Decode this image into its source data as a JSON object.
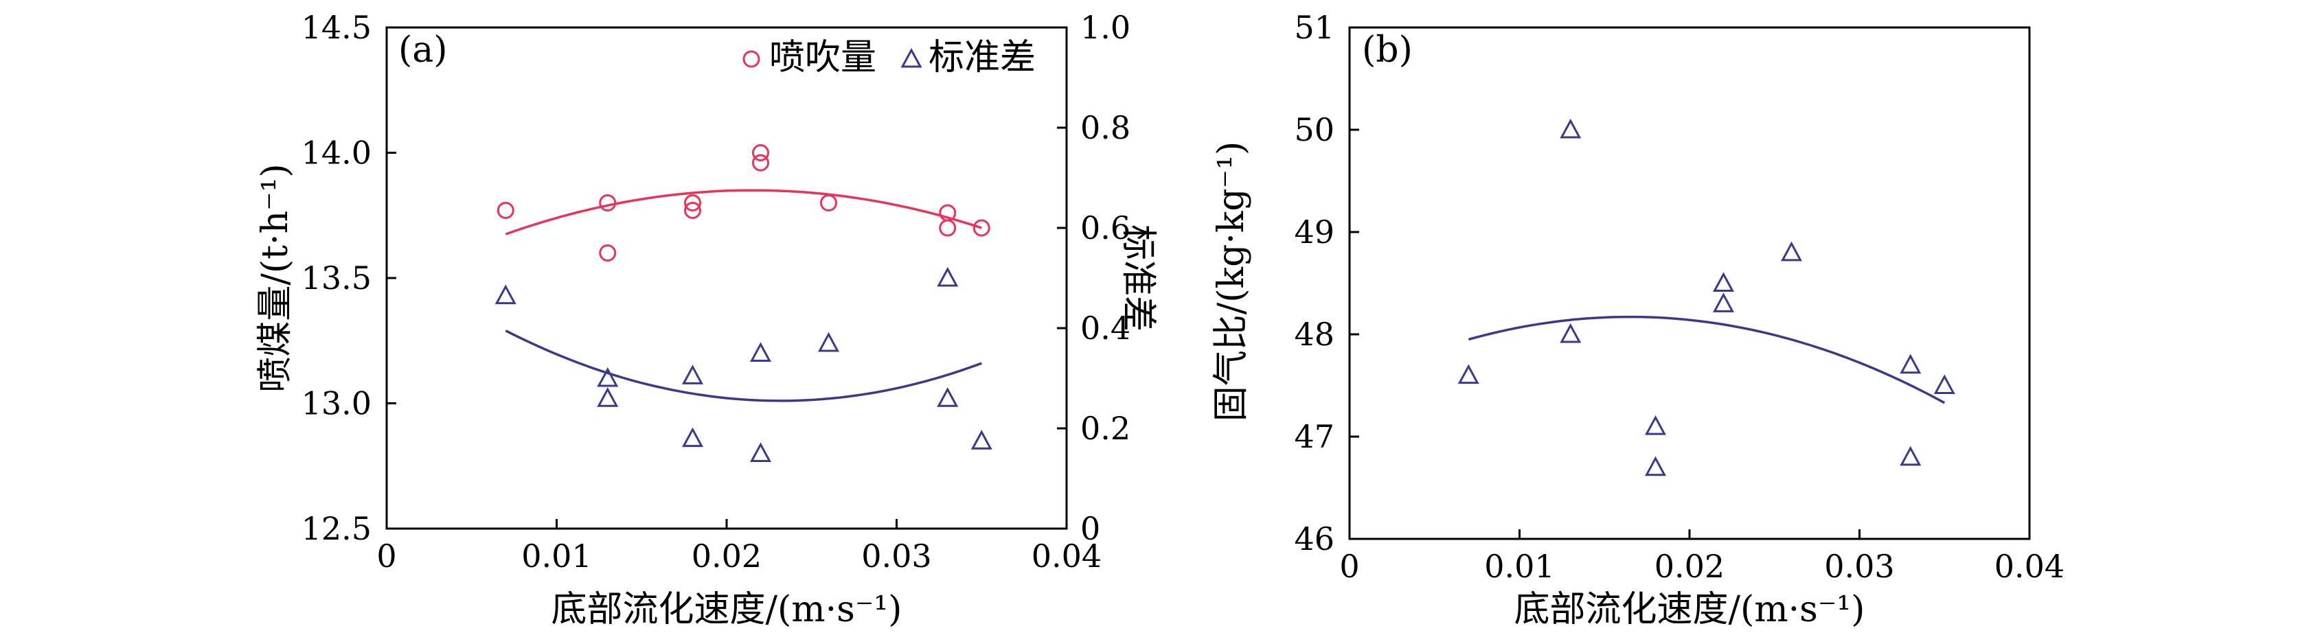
{
  "chart_data": [
    {
      "type": "scatter",
      "panel_label": "(a)",
      "xlabel": "底部流化速度/(m·s⁻¹)",
      "ylabel": "喷煤量/(t·h⁻¹)",
      "y2label": "标准差",
      "xlim": [
        0,
        0.04
      ],
      "ylim": [
        12.5,
        14.5
      ],
      "y2lim": [
        0,
        1.0
      ],
      "x_ticks": [
        "0",
        "0.01",
        "0.02",
        "0.03",
        "0.04"
      ],
      "y_ticks": [
        "12.5",
        "13.0",
        "13.5",
        "14.0",
        "14.5"
      ],
      "y2_ticks": [
        "0",
        "0.2",
        "0.4",
        "0.6",
        "0.8",
        "1.0"
      ],
      "legend_position": "top-right",
      "grid": false,
      "series": [
        {
          "name": "喷吹量",
          "axis": "left",
          "marker": "circle",
          "color": "#e8335a",
          "points": [
            [
              0.007,
              13.77
            ],
            [
              0.013,
              13.8
            ],
            [
              0.013,
              13.6
            ],
            [
              0.018,
              13.8
            ],
            [
              0.018,
              13.77
            ],
            [
              0.022,
              14.0
            ],
            [
              0.022,
              13.96
            ],
            [
              0.026,
              13.8
            ],
            [
              0.033,
              13.76
            ],
            [
              0.033,
              13.7
            ],
            [
              0.035,
              13.7
            ]
          ],
          "fit": {
            "x_range": [
              0.007,
              0.035
            ],
            "points": [
              [
                0.007,
                13.675
              ],
              [
                0.022,
                13.85
              ],
              [
                0.035,
                13.7
              ]
            ]
          }
        },
        {
          "name": "标准差",
          "axis": "right",
          "marker": "triangle",
          "color": "#3a3a8c",
          "points": [
            [
              0.007,
              0.465
            ],
            [
              0.013,
              0.3
            ],
            [
              0.013,
              0.26
            ],
            [
              0.018,
              0.305
            ],
            [
              0.018,
              0.18
            ],
            [
              0.022,
              0.35
            ],
            [
              0.022,
              0.15
            ],
            [
              0.026,
              0.37
            ],
            [
              0.033,
              0.5
            ],
            [
              0.033,
              0.26
            ],
            [
              0.035,
              0.175
            ]
          ],
          "fit": {
            "x_range": [
              0.007,
              0.035
            ],
            "points": [
              [
                0.007,
                0.395
              ],
              [
                0.023,
                0.255
              ],
              [
                0.035,
                0.33
              ]
            ]
          }
        }
      ]
    },
    {
      "type": "scatter",
      "panel_label": "(b)",
      "xlabel": "底部流化速度/(m·s⁻¹)",
      "ylabel": "固气比/(kg·kg⁻¹)",
      "xlim": [
        0,
        0.04
      ],
      "ylim": [
        46,
        51
      ],
      "x_ticks": [
        "0",
        "0.01",
        "0.02",
        "0.03",
        "0.04"
      ],
      "y_ticks": [
        "46",
        "47",
        "48",
        "49",
        "50",
        "51"
      ],
      "grid": false,
      "series": [
        {
          "marker": "triangle",
          "color": "#3a3a8c",
          "points": [
            [
              0.007,
              47.6
            ],
            [
              0.013,
              50.0
            ],
            [
              0.013,
              48.0
            ],
            [
              0.018,
              47.1
            ],
            [
              0.018,
              46.7
            ],
            [
              0.022,
              48.5
            ],
            [
              0.022,
              48.3
            ],
            [
              0.026,
              48.8
            ],
            [
              0.033,
              47.7
            ],
            [
              0.033,
              46.8
            ],
            [
              0.035,
              47.5
            ]
          ],
          "fit": {
            "x_range": [
              0.007,
              0.035
            ],
            "points": [
              [
                0.007,
                47.95
              ],
              [
                0.017,
                48.17
              ],
              [
                0.035,
                47.33
              ]
            ]
          }
        }
      ]
    }
  ]
}
